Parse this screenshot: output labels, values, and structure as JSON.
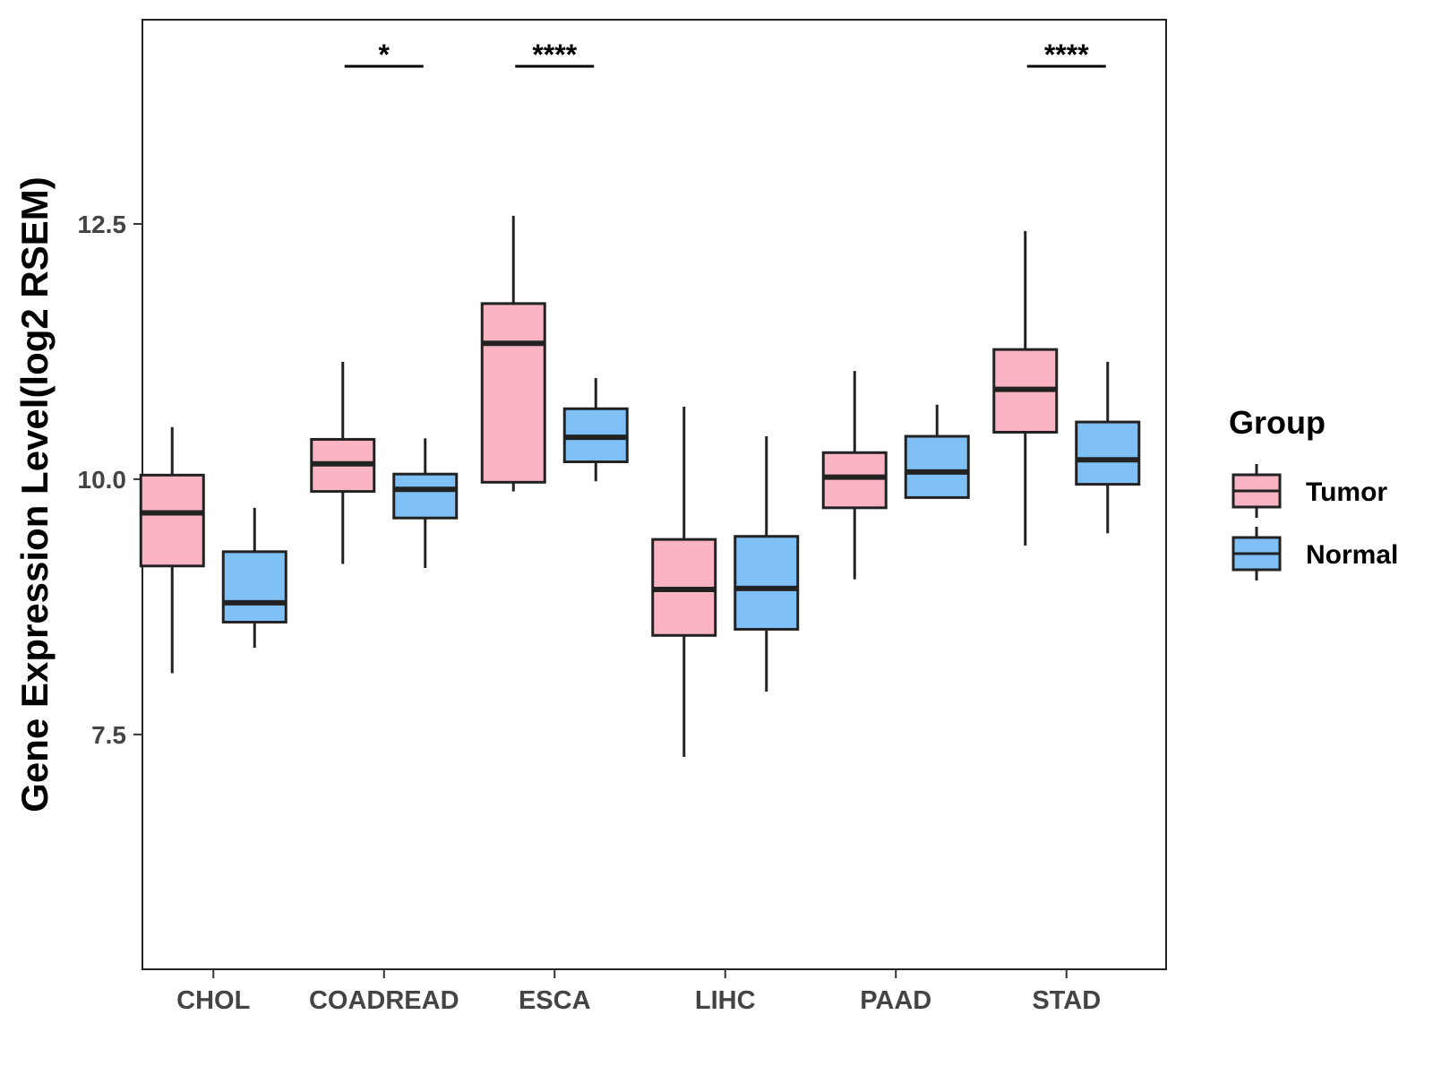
{
  "chart_data": {
    "type": "boxplot",
    "title": "",
    "xlabel": "",
    "ylabel": "Gene Expression Level(log2 RSEM)",
    "ylim": [
      5.2,
      14.5
    ],
    "yticks": [
      "7.5",
      "10.0",
      "12.5"
    ],
    "categories": [
      "CHOL",
      "COADREAD",
      "ESCA",
      "LIHC",
      "PAAD",
      "STAD"
    ],
    "legend": {
      "title": "Group",
      "position": "right"
    },
    "colors": {
      "Tumor": "#fbb4c4",
      "Normal": "#7fc1f6",
      "outline": "#222222"
    },
    "series": [
      {
        "name": "Tumor",
        "boxes": [
          {
            "min": 8.1,
            "q1": 9.15,
            "median": 9.67,
            "q3": 10.04,
            "max": 10.51
          },
          {
            "min": 9.17,
            "q1": 9.88,
            "median": 10.15,
            "q3": 10.39,
            "max": 11.15
          },
          {
            "min": 9.88,
            "q1": 9.97,
            "median": 11.33,
            "q3": 11.72,
            "max": 12.58
          },
          {
            "min": 7.28,
            "q1": 8.47,
            "median": 8.92,
            "q3": 9.41,
            "max": 10.71
          },
          {
            "min": 9.02,
            "q1": 9.72,
            "median": 10.02,
            "q3": 10.26,
            "max": 11.06
          },
          {
            "min": 9.35,
            "q1": 10.46,
            "median": 10.88,
            "q3": 11.27,
            "max": 12.43
          }
        ]
      },
      {
        "name": "Normal",
        "boxes": [
          {
            "min": 8.35,
            "q1": 8.6,
            "median": 8.79,
            "q3": 9.29,
            "max": 9.72
          },
          {
            "min": 9.13,
            "q1": 9.62,
            "median": 9.9,
            "q3": 10.05,
            "max": 10.4
          },
          {
            "min": 9.98,
            "q1": 10.17,
            "median": 10.41,
            "q3": 10.69,
            "max": 10.99
          },
          {
            "min": 7.92,
            "q1": 8.53,
            "median": 8.93,
            "q3": 9.44,
            "max": 10.42
          },
          {
            "min": 9.82,
            "q1": 9.82,
            "median": 10.07,
            "q3": 10.42,
            "max": 10.73
          },
          {
            "min": 9.47,
            "q1": 9.95,
            "median": 10.19,
            "q3": 10.56,
            "max": 11.15
          }
        ]
      }
    ],
    "significance": [
      {
        "category": "COADREAD",
        "label": "*"
      },
      {
        "category": "ESCA",
        "label": "****"
      },
      {
        "category": "STAD",
        "label": "****"
      }
    ]
  }
}
